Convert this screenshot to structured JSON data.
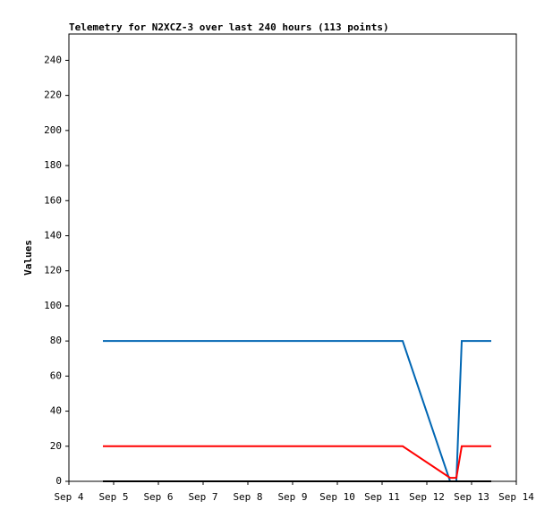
{
  "chart_data": {
    "type": "line",
    "title": "Telemetry for N2XCZ-3 over last 240 hours (113 points)",
    "y_label": "Values",
    "series": [
      {
        "color": "#0066b3",
        "x": [
          4.76,
          11.46,
          12.52,
          12.66,
          12.78,
          13.44
        ],
        "values": [
          80,
          80,
          0,
          0,
          80,
          80
        ]
      },
      {
        "color": "#ff0000",
        "x": [
          4.76,
          11.46,
          12.52,
          12.66,
          12.78,
          13.44
        ],
        "values": [
          20,
          20,
          2,
          2,
          20,
          20
        ]
      },
      {
        "color": "#000000",
        "x": [
          4.76,
          13.44
        ],
        "values": [
          0,
          0
        ]
      }
    ],
    "xlim": [
      4,
      14
    ],
    "xticks": [
      {
        "value": 4,
        "label": "Sep 4"
      },
      {
        "value": 5,
        "label": "Sep 5"
      },
      {
        "value": 6,
        "label": "Sep 6"
      },
      {
        "value": 7,
        "label": "Sep 7"
      },
      {
        "value": 8,
        "label": "Sep 8"
      },
      {
        "value": 9,
        "label": "Sep 9"
      },
      {
        "value": 10,
        "label": "Sep 10"
      },
      {
        "value": 11,
        "label": "Sep 11"
      },
      {
        "value": 12,
        "label": "Sep 12"
      },
      {
        "value": 13,
        "label": "Sep 13"
      },
      {
        "value": 14,
        "label": "Sep 14"
      }
    ],
    "ylim": [
      0,
      255
    ],
    "yticks": [
      0,
      20,
      40,
      60,
      80,
      100,
      120,
      140,
      160,
      180,
      200,
      220,
      240
    ]
  }
}
